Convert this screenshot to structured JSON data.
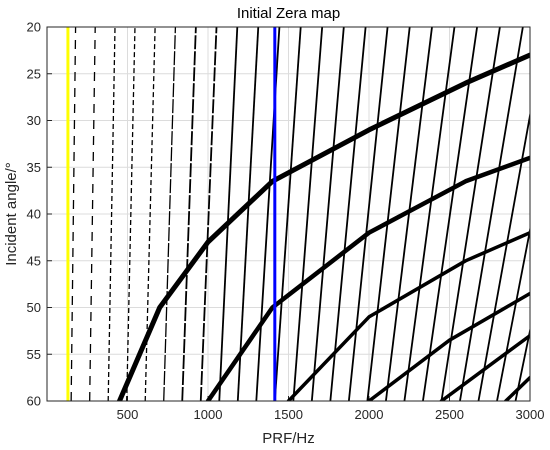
{
  "chart_data": {
    "type": "line",
    "title": "Initial Zera map",
    "xlabel": "PRF/Hz",
    "ylabel": "Incident angle/°",
    "xlim": [
      0,
      3000
    ],
    "ylim": [
      20,
      60
    ],
    "y_reversed": true,
    "grid": true,
    "xticks": [
      500,
      1000,
      1500,
      2000,
      2500,
      3000
    ],
    "yticks": [
      20,
      25,
      30,
      35,
      40,
      45,
      50,
      55,
      60
    ],
    "xtick_labels": [
      "500",
      "1000",
      "1500",
      "2000",
      "2500",
      "3000"
    ],
    "ytick_labels": [
      "20",
      "25",
      "30",
      "35",
      "40",
      "45",
      "50",
      "55",
      "60"
    ],
    "vertical_markers": [
      {
        "x": 130,
        "color": "#ffff00"
      },
      {
        "x": 1415,
        "color": "#0000ff"
      }
    ],
    "nadir_curves": [
      {
        "x_start": 450,
        "y_start": 60,
        "points": [
          [
            450,
            60
          ],
          [
            700,
            50
          ],
          [
            1000,
            43
          ],
          [
            1400,
            36.5
          ],
          [
            2000,
            31
          ],
          [
            2600,
            26
          ],
          [
            3000,
            23
          ]
        ]
      },
      {
        "x_start": 1000,
        "y_start": 60,
        "points": [
          [
            1000,
            60
          ],
          [
            1400,
            50
          ],
          [
            2000,
            42
          ],
          [
            2600,
            36.5
          ],
          [
            3000,
            34
          ]
        ]
      },
      {
        "x_start": 1500,
        "y_start": 60,
        "points": [
          [
            1500,
            60
          ],
          [
            2000,
            51
          ],
          [
            2600,
            45
          ],
          [
            3000,
            42
          ]
        ]
      },
      {
        "x_start": 2000,
        "y_start": 60,
        "points": [
          [
            2000,
            60
          ],
          [
            2500,
            53.5
          ],
          [
            3000,
            48.5
          ]
        ]
      },
      {
        "x_start": 2450,
        "y_start": 60,
        "points": [
          [
            2450,
            60
          ],
          [
            3000,
            53
          ]
        ]
      },
      {
        "x_start": 2850,
        "y_start": 60,
        "points": [
          [
            2850,
            60
          ],
          [
            3000,
            57.5
          ]
        ]
      }
    ],
    "eclipse_lines_count": 33,
    "marker_color": "#000000"
  }
}
